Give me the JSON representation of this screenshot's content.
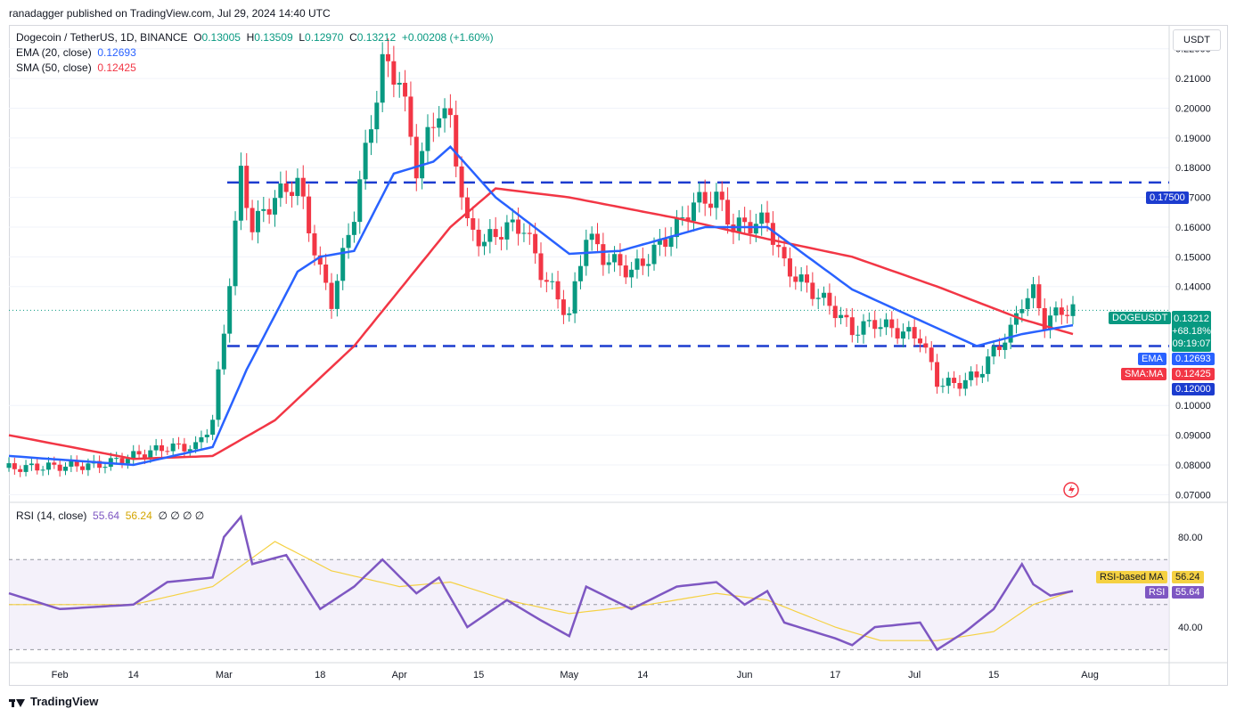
{
  "header": {
    "published": "ranadagger published on TradingView.com, Jul 29, 2024 14:40 UTC"
  },
  "legend": {
    "symbol": "Dogecoin / TetherUS, 1D, BINANCE",
    "o_label": "O",
    "o": "0.13005",
    "h_label": "H",
    "h": "0.13509",
    "l_label": "L",
    "l": "0.12970",
    "c_label": "C",
    "c": "0.13212",
    "change": "+0.00208 (+1.60%)",
    "ema_label": "EMA (20, close)",
    "ema": "0.12693",
    "sma_label": "SMA (50, close)",
    "sma": "0.12425",
    "rsi_label": "RSI (14, close)",
    "rsi": "55.64",
    "rsi_ma": "56.24",
    "rsi_zeros": "∅ ∅ ∅ ∅"
  },
  "currency": "USDT",
  "price_axis": [
    "0.22000",
    "0.21000",
    "0.20000",
    "0.19000",
    "0.18000",
    "0.17000",
    "0.16000",
    "0.15000",
    "0.14000",
    "0.10000",
    "0.09000",
    "0.08000",
    "0.07000"
  ],
  "price_tags": {
    "level_high": "0.17500",
    "symbol": "DOGEUSDT",
    "last": "0.13212",
    "pct": "+68.18%",
    "countdown": "09:19:07",
    "ema_name": "EMA",
    "ema_val": "0.12693",
    "sma_name": "SMA:MA",
    "sma_val": "0.12425",
    "level_low": "0.12000"
  },
  "rsi_axis": [
    "80.00",
    "40.00"
  ],
  "rsi_tags": {
    "ma_name": "RSI-based MA",
    "ma_val": "56.24",
    "rsi_name": "RSI",
    "rsi_val": "55.64"
  },
  "x_labels": [
    "Feb",
    "14",
    "Mar",
    "18",
    "Apr",
    "15",
    "May",
    "14",
    "Jun",
    "17",
    "Jul",
    "15",
    "Aug"
  ],
  "footer": {
    "brand": "TradingView"
  },
  "colors": {
    "up": "#089981",
    "down": "#f23645",
    "ema": "#2962ff",
    "sma": "#f23645",
    "rsi": "#7e57c2",
    "rsi_ma": "#f5d142",
    "level": "#1c3ccf"
  },
  "chart_data": {
    "type": "candlestick",
    "symbol": "DOGEUSDT",
    "timeframe": "1D",
    "x_start": "2024-01-23",
    "x_end": "2024-07-29",
    "ylim": [
      0.068,
      0.228
    ],
    "levels": [
      0.175,
      0.12
    ],
    "close_approx": [
      [
        "2024-01-24",
        0.079
      ],
      [
        "2024-02-08",
        0.08
      ],
      [
        "2024-02-14",
        0.083
      ],
      [
        "2024-02-20",
        0.086
      ],
      [
        "2024-02-25",
        0.086
      ],
      [
        "2024-02-28",
        0.095
      ],
      [
        "2024-03-01",
        0.125
      ],
      [
        "2024-03-04",
        0.178
      ],
      [
        "2024-03-06",
        0.16
      ],
      [
        "2024-03-10",
        0.17
      ],
      [
        "2024-03-14",
        0.175
      ],
      [
        "2024-03-18",
        0.145
      ],
      [
        "2024-03-20",
        0.135
      ],
      [
        "2024-03-24",
        0.165
      ],
      [
        "2024-03-27",
        0.195
      ],
      [
        "2024-03-29",
        0.215
      ],
      [
        "2024-04-01",
        0.21
      ],
      [
        "2024-04-04",
        0.18
      ],
      [
        "2024-04-08",
        0.2
      ],
      [
        "2024-04-10",
        0.195
      ],
      [
        "2024-04-13",
        0.16
      ],
      [
        "2024-04-16",
        0.155
      ],
      [
        "2024-04-20",
        0.16
      ],
      [
        "2024-04-23",
        0.16
      ],
      [
        "2024-04-26",
        0.145
      ],
      [
        "2024-05-01",
        0.13
      ],
      [
        "2024-05-04",
        0.158
      ],
      [
        "2024-05-07",
        0.15
      ],
      [
        "2024-05-12",
        0.145
      ],
      [
        "2024-05-15",
        0.15
      ],
      [
        "2024-05-20",
        0.16
      ],
      [
        "2024-05-23",
        0.168
      ],
      [
        "2024-05-27",
        0.17
      ],
      [
        "2024-05-30",
        0.16
      ],
      [
        "2024-06-05",
        0.162
      ],
      [
        "2024-06-08",
        0.147
      ],
      [
        "2024-06-12",
        0.14
      ],
      [
        "2024-06-17",
        0.132
      ],
      [
        "2024-06-20",
        0.125
      ],
      [
        "2024-06-24",
        0.128
      ],
      [
        "2024-06-28",
        0.125
      ],
      [
        "2024-07-02",
        0.123
      ],
      [
        "2024-07-05",
        0.108
      ],
      [
        "2024-07-08",
        0.107
      ],
      [
        "2024-07-12",
        0.11
      ],
      [
        "2024-07-15",
        0.118
      ],
      [
        "2024-07-18",
        0.125
      ],
      [
        "2024-07-20",
        0.135
      ],
      [
        "2024-07-22",
        0.138
      ],
      [
        "2024-07-24",
        0.128
      ],
      [
        "2024-07-27",
        0.132
      ],
      [
        "2024-07-29",
        0.132
      ]
    ],
    "ema20_approx": [
      [
        "2024-01-23",
        0.083
      ],
      [
        "2024-02-14",
        0.08
      ],
      [
        "2024-02-28",
        0.086
      ],
      [
        "2024-03-05",
        0.112
      ],
      [
        "2024-03-14",
        0.145
      ],
      [
        "2024-03-18",
        0.15
      ],
      [
        "2024-03-24",
        0.152
      ],
      [
        "2024-03-31",
        0.178
      ],
      [
        "2024-04-07",
        0.182
      ],
      [
        "2024-04-10",
        0.187
      ],
      [
        "2024-04-18",
        0.17
      ],
      [
        "2024-05-01",
        0.151
      ],
      [
        "2024-05-10",
        0.152
      ],
      [
        "2024-05-25",
        0.16
      ],
      [
        "2024-06-05",
        0.16
      ],
      [
        "2024-06-20",
        0.139
      ],
      [
        "2024-07-05",
        0.126
      ],
      [
        "2024-07-12",
        0.12
      ],
      [
        "2024-07-20",
        0.124
      ],
      [
        "2024-07-29",
        0.127
      ]
    ],
    "sma50_approx": [
      [
        "2024-01-23",
        0.09
      ],
      [
        "2024-02-14",
        0.082
      ],
      [
        "2024-02-28",
        0.083
      ],
      [
        "2024-03-10",
        0.095
      ],
      [
        "2024-03-24",
        0.12
      ],
      [
        "2024-04-10",
        0.16
      ],
      [
        "2024-04-18",
        0.173
      ],
      [
        "2024-05-01",
        0.17
      ],
      [
        "2024-05-20",
        0.163
      ],
      [
        "2024-06-05",
        0.156
      ],
      [
        "2024-06-20",
        0.15
      ],
      [
        "2024-07-05",
        0.14
      ],
      [
        "2024-07-20",
        0.129
      ],
      [
        "2024-07-29",
        0.124
      ]
    ],
    "rsi": {
      "ylim": [
        25,
        95
      ],
      "upper": 70,
      "lower": 30,
      "values_approx": [
        [
          "2024-01-23",
          55
        ],
        [
          "2024-02-01",
          48
        ],
        [
          "2024-02-14",
          50
        ],
        [
          "2024-02-20",
          60
        ],
        [
          "2024-02-28",
          62
        ],
        [
          "2024-03-01",
          80
        ],
        [
          "2024-03-04",
          89
        ],
        [
          "2024-03-06",
          68
        ],
        [
          "2024-03-12",
          72
        ],
        [
          "2024-03-18",
          48
        ],
        [
          "2024-03-24",
          58
        ],
        [
          "2024-03-29",
          70
        ],
        [
          "2024-04-04",
          55
        ],
        [
          "2024-04-08",
          62
        ],
        [
          "2024-04-13",
          40
        ],
        [
          "2024-04-20",
          52
        ],
        [
          "2024-04-26",
          43
        ],
        [
          "2024-05-01",
          36
        ],
        [
          "2024-05-04",
          58
        ],
        [
          "2024-05-12",
          48
        ],
        [
          "2024-05-20",
          58
        ],
        [
          "2024-05-27",
          60
        ],
        [
          "2024-06-01",
          50
        ],
        [
          "2024-06-05",
          56
        ],
        [
          "2024-06-08",
          42
        ],
        [
          "2024-06-17",
          35
        ],
        [
          "2024-06-20",
          32
        ],
        [
          "2024-06-24",
          40
        ],
        [
          "2024-07-02",
          42
        ],
        [
          "2024-07-05",
          30
        ],
        [
          "2024-07-10",
          38
        ],
        [
          "2024-07-15",
          48
        ],
        [
          "2024-07-20",
          68
        ],
        [
          "2024-07-22",
          59
        ],
        [
          "2024-07-25",
          54
        ],
        [
          "2024-07-29",
          56
        ]
      ],
      "ma_approx": [
        [
          "2024-01-23",
          50
        ],
        [
          "2024-02-14",
          50
        ],
        [
          "2024-02-28",
          58
        ],
        [
          "2024-03-10",
          78
        ],
        [
          "2024-03-20",
          65
        ],
        [
          "2024-04-01",
          58
        ],
        [
          "2024-04-10",
          60
        ],
        [
          "2024-04-20",
          52
        ],
        [
          "2024-05-01",
          46
        ],
        [
          "2024-05-15",
          50
        ],
        [
          "2024-05-27",
          55
        ],
        [
          "2024-06-05",
          52
        ],
        [
          "2024-06-17",
          40
        ],
        [
          "2024-06-25",
          34
        ],
        [
          "2024-07-05",
          34
        ],
        [
          "2024-07-15",
          38
        ],
        [
          "2024-07-22",
          50
        ],
        [
          "2024-07-29",
          56
        ]
      ]
    }
  }
}
